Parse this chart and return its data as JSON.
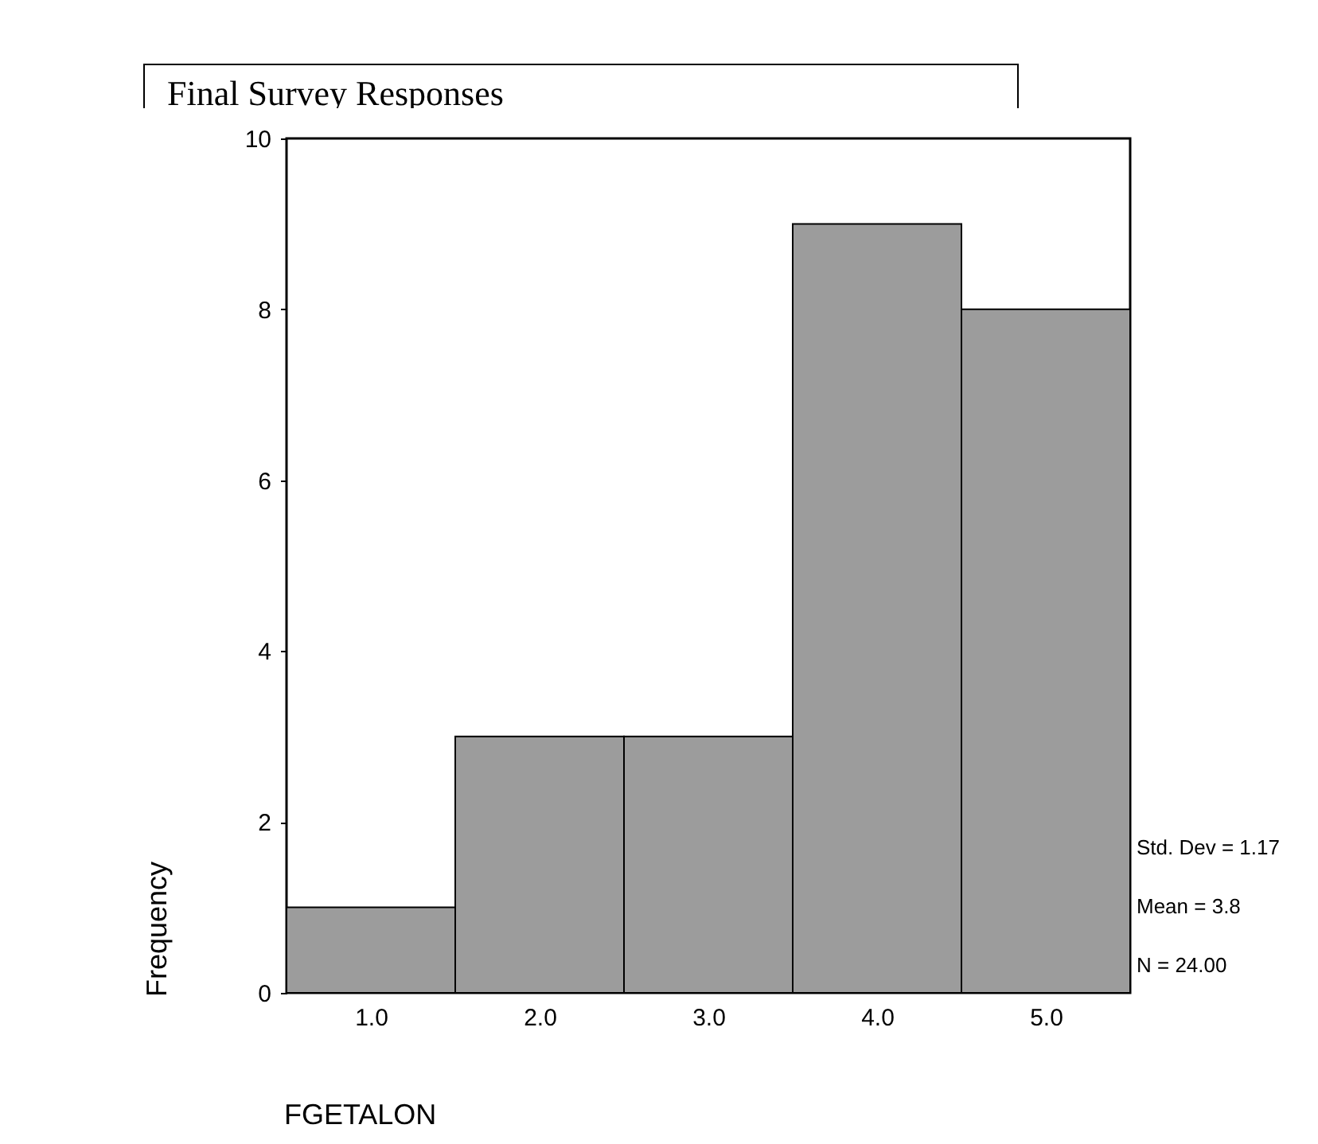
{
  "chart_data": {
    "type": "histogram",
    "title": "Final Survey Responses",
    "xlabel": "FGETALON",
    "ylabel": "Frequency",
    "bins": [
      0.5,
      1.5,
      2.5,
      3.5,
      4.5,
      5.5
    ],
    "values": [
      1,
      3,
      3,
      9,
      8
    ],
    "color": "#9c9c9c",
    "xlim": [
      0.5,
      5.5
    ],
    "xticks": [
      {
        "value": 1,
        "label": "1.0"
      },
      {
        "value": 2,
        "label": "2.0"
      },
      {
        "value": 3,
        "label": "3.0"
      },
      {
        "value": 4,
        "label": "4.0"
      },
      {
        "value": 5,
        "label": "5.0"
      }
    ],
    "ylim": [
      0,
      10
    ],
    "yticks": [
      0,
      2,
      4,
      6,
      8,
      10
    ],
    "grid": false,
    "annotations": [
      "Std. Dev = 1.17",
      "Mean = 3.8",
      "N = 24.00"
    ]
  }
}
